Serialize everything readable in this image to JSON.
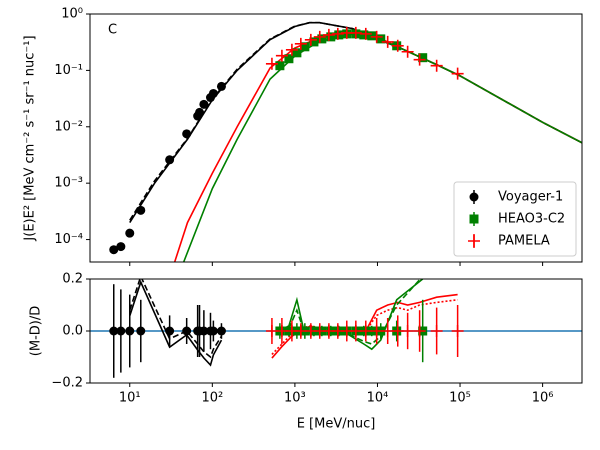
{
  "chart_data": {
    "type": "scatter",
    "panel_label": "C",
    "ylabel": "J(E)E² [MeV cm⁻² s⁻¹ sr⁻¹ nuc⁻¹]",
    "xlabel": "E [MeV/nuc]",
    "xscale": "log",
    "yscale": "log",
    "xlim": [
      3.3,
      3000000
    ],
    "ylim": [
      4e-05,
      1
    ],
    "xticks": [
      {
        "value": 10,
        "label": "10¹"
      },
      {
        "value": 100,
        "label": "10²"
      },
      {
        "value": 1000,
        "label": "10³"
      },
      {
        "value": 10000,
        "label": "10⁴"
      },
      {
        "value": 100000,
        "label": "10⁵"
      },
      {
        "value": 1000000,
        "label": "10⁶"
      }
    ],
    "yticks": [
      {
        "value": 0.0001,
        "label": "10⁻⁴"
      },
      {
        "value": 0.001,
        "label": "10⁻³"
      },
      {
        "value": 0.01,
        "label": "10⁻²"
      },
      {
        "value": 0.1,
        "label": "10⁻¹"
      },
      {
        "value": 1,
        "label": "10⁰"
      }
    ],
    "legend": "lower right",
    "series": [
      {
        "name": "Voyager-1",
        "color": "#000000",
        "marker": "circle",
        "x": [
          6.4,
          7.8,
          10,
          13.6,
          30.4,
          48.9,
          66.4,
          70,
          79,
          95,
          103,
          129
        ],
        "values": [
          6.6e-05,
          7.5e-05,
          0.00013,
          0.00033,
          0.0026,
          0.0075,
          0.0155,
          0.018,
          0.025,
          0.033,
          0.039,
          0.052
        ],
        "residuals": [
          0,
          0,
          0,
          0,
          0,
          0,
          0,
          0,
          0,
          0,
          0,
          0
        ],
        "errors": [
          0.18,
          0.16,
          0.14,
          0.12,
          0.06,
          0.05,
          0.1,
          0.1,
          0.08,
          0.07,
          0.04,
          0.03
        ]
      },
      {
        "name": "HEAO3-C2",
        "color": "#008000",
        "marker": "square",
        "x": [
          658,
          846,
          1057,
          1320,
          1700,
          2120,
          2720,
          3400,
          4250,
          5470,
          6830,
          8530,
          10960,
          17100,
          35300
        ],
        "values": [
          0.121,
          0.161,
          0.205,
          0.262,
          0.32,
          0.362,
          0.393,
          0.426,
          0.444,
          0.444,
          0.426,
          0.41,
          0.362,
          0.273,
          0.168
        ],
        "residuals": [
          0,
          0,
          0,
          0,
          0,
          0,
          0,
          0,
          0,
          0,
          0,
          0,
          0,
          0,
          0
        ],
        "errors": [
          0.03,
          0.02,
          0.03,
          0.03,
          0.02,
          0.02,
          0.02,
          0.02,
          0.02,
          0.02,
          0.02,
          0.02,
          0.03,
          0.04,
          0.12
        ]
      },
      {
        "name": "PAMELA",
        "color": "#ff0000",
        "marker": "plus",
        "x": [
          527,
          696,
          920,
          1180,
          1560,
          2000,
          2580,
          3310,
          4250,
          5470,
          7220,
          9780,
          13300,
          17600,
          23200,
          32400,
          52100,
          93500
        ],
        "values": [
          0.131,
          0.182,
          0.232,
          0.296,
          0.348,
          0.393,
          0.426,
          0.444,
          0.462,
          0.462,
          0.444,
          0.393,
          0.32,
          0.273,
          0.214,
          0.155,
          0.121,
          0.0875
        ],
        "residuals": [
          0,
          0,
          0,
          0,
          0,
          0,
          0,
          0,
          0,
          0,
          0,
          0,
          0,
          0,
          0,
          0,
          0,
          0
        ],
        "errors": [
          0.05,
          0.05,
          0.04,
          0.03,
          0.03,
          0.03,
          0.03,
          0.03,
          0.04,
          0.04,
          0.04,
          0.05,
          0.05,
          0.06,
          0.07,
          0.08,
          0.09,
          0.1
        ]
      }
    ],
    "models": [
      {
        "color": "#000000",
        "dash": "solid",
        "x": [
          10,
          20,
          50,
          100,
          200,
          500,
          1000,
          1500,
          2000,
          5000,
          10000,
          20000,
          50000,
          100000,
          1000000,
          3000000
        ],
        "values": [
          0.0002,
          0.001,
          0.006,
          0.03,
          0.1,
          0.35,
          0.6,
          0.7,
          0.7,
          0.55,
          0.36,
          0.24,
          0.13,
          0.08,
          0.012,
          0.0052
        ]
      },
      {
        "color": "#000000",
        "dash": "dashed",
        "x": [
          10,
          20,
          50,
          100,
          200,
          500,
          1000,
          1500,
          2000,
          5000,
          10000,
          20000,
          50000,
          100000,
          1000000,
          3000000
        ],
        "values": [
          0.00022,
          0.0011,
          0.0062,
          0.031,
          0.105,
          0.36,
          0.61,
          0.7,
          0.7,
          0.55,
          0.36,
          0.24,
          0.13,
          0.08,
          0.012,
          0.0052
        ]
      },
      {
        "color": "#ff0000",
        "dash": "solid",
        "x": [
          35,
          50,
          100,
          200,
          500,
          1000,
          2000,
          5000,
          10000,
          20000,
          50000,
          100000,
          1000000,
          3000000
        ],
        "values": [
          4e-05,
          0.0002,
          0.0015,
          0.01,
          0.11,
          0.25,
          0.38,
          0.46,
          0.39,
          0.24,
          0.13,
          0.08,
          0.012,
          0.0052
        ]
      },
      {
        "color": "#008000",
        "dash": "solid",
        "x": [
          45,
          100,
          200,
          500,
          1000,
          2000,
          5000,
          10000,
          20000,
          50000,
          100000,
          1000000,
          3000000
        ],
        "values": [
          4e-05,
          0.0008,
          0.006,
          0.07,
          0.18,
          0.33,
          0.44,
          0.37,
          0.24,
          0.13,
          0.08,
          0.012,
          0.0052
        ]
      }
    ],
    "residual_panel": {
      "ylabel": "(M-D)/D",
      "ylim": [
        -0.2,
        0.2
      ],
      "yticks": [
        {
          "value": -0.2,
          "label": "−0.2"
        },
        {
          "value": 0,
          "label": "0.0"
        },
        {
          "value": 0.2,
          "label": "0.2"
        }
      ],
      "reference_line": {
        "value": 0,
        "color": "#1f77b4"
      },
      "models": [
        {
          "color": "#000000",
          "dash": "solid",
          "x": [
            10,
            13.6,
            30.4,
            48.9,
            66.4,
            79,
            95,
            103,
            129
          ],
          "values": [
            0.058,
            0.188,
            -0.062,
            -0.015,
            -0.073,
            -0.104,
            -0.131,
            -0.092,
            -0.035
          ]
        },
        {
          "color": "#000000",
          "dash": "dashed",
          "x": [
            10,
            13.6,
            30.4,
            48.9,
            66.4,
            79,
            95,
            103,
            129
          ],
          "values": [
            0.08,
            0.21,
            -0.03,
            0.0,
            -0.05,
            -0.08,
            -0.1,
            -0.07,
            -0.02
          ]
        },
        {
          "color": "#ff0000",
          "dash": "solid",
          "x": [
            527,
            696,
            920,
            1180,
            1560,
            2000,
            4250,
            7220,
            9780,
            13300,
            17600,
            23200,
            32400,
            52100,
            93500
          ],
          "values": [
            -0.104,
            -0.06,
            -0.02,
            0.0,
            0.02,
            0.0,
            0.0,
            0.0,
            0.08,
            0.1,
            0.11,
            0.1,
            0.11,
            0.13,
            0.14
          ]
        },
        {
          "color": "#ff0000",
          "dash": "dotted",
          "x": [
            527,
            696,
            920,
            1180,
            1560,
            2000,
            4250,
            7220,
            9780,
            13300,
            17600,
            23200,
            32400,
            52100,
            93500
          ],
          "values": [
            -0.09,
            -0.05,
            -0.01,
            0.01,
            0.02,
            0.01,
            0.01,
            0.0,
            0.06,
            0.08,
            0.09,
            0.08,
            0.1,
            0.11,
            0.12
          ]
        },
        {
          "color": "#008000",
          "dash": "solid",
          "x": [
            658,
            846,
            1057,
            1320,
            1700,
            2720,
            4250,
            6830,
            8530,
            10960,
            17100,
            35300
          ],
          "values": [
            0,
            0.02,
            0.12,
            -0.015,
            0,
            0,
            -0.01,
            -0.05,
            -0.07,
            -0.035,
            0.12,
            0.2
          ]
        },
        {
          "color": "#008000",
          "dash": "dashed",
          "x": [
            658,
            846,
            1057,
            1320,
            1700,
            2720,
            4250,
            6830,
            8530,
            10960,
            17100,
            35300
          ],
          "values": [
            0,
            0.01,
            0.08,
            -0.01,
            0,
            0,
            -0.01,
            -0.04,
            -0.05,
            -0.02,
            0.1,
            0.21
          ]
        }
      ]
    }
  }
}
